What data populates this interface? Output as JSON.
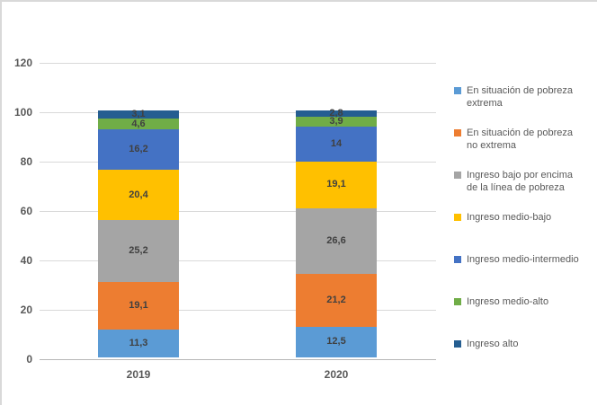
{
  "figure": {
    "background_color": "#FFFFFF",
    "border_color": "#D9D9D9"
  },
  "chart_data": {
    "type": "bar",
    "stacked": true,
    "title": "",
    "xlabel": "",
    "ylabel": "",
    "categories": [
      "2019",
      "2020"
    ],
    "series": [
      {
        "name": "En situación de pobreza extrema",
        "legend_label": "En situación de pobreza\nextrema",
        "color": "#5B9BD5",
        "values": [
          11.3,
          12.5
        ],
        "data_labels": [
          "11,3",
          "12,5"
        ]
      },
      {
        "name": "En situación de pobreza no extrema",
        "legend_label": "En situación de pobreza\nno extrema",
        "color": "#ED7D31",
        "values": [
          19.1,
          21.2
        ],
        "data_labels": [
          "19,1",
          "21,2"
        ]
      },
      {
        "name": "Ingreso bajo por encima de la línea de pobreza",
        "legend_label": "Ingreso bajo por encima\nde la línea de pobreza",
        "color": "#A5A5A5",
        "values": [
          25.2,
          26.6
        ],
        "data_labels": [
          "25,2",
          "26,6"
        ]
      },
      {
        "name": "Ingreso medio-bajo",
        "legend_label": "Ingreso medio-bajo",
        "color": "#FFC000",
        "values": [
          20.4,
          19.1
        ],
        "data_labels": [
          "20,4",
          "19,1"
        ]
      },
      {
        "name": "Ingreso medio-intermedio",
        "legend_label": "Ingreso medio-intermedio",
        "color": "#4472C4",
        "values": [
          16.2,
          14
        ],
        "data_labels": [
          "16,2",
          "14"
        ]
      },
      {
        "name": "Ingreso medio-alto",
        "legend_label": "Ingreso medio-alto",
        "color": "#70AD47",
        "values": [
          4.6,
          3.9
        ],
        "data_labels": [
          "4,6",
          "3,9"
        ]
      },
      {
        "name": "Ingreso alto",
        "legend_label": "Ingreso alto",
        "color": "#255E91",
        "values": [
          3.1,
          2.8
        ],
        "data_labels": [
          "3,1",
          "2,8"
        ]
      }
    ],
    "y_ticks": [
      0,
      20,
      40,
      60,
      80,
      100,
      120
    ],
    "y_tick_labels": [
      "0",
      "20",
      "40",
      "60",
      "80",
      "100",
      "120"
    ],
    "ylim": [
      0,
      120
    ],
    "grid": true,
    "legend_position": "right",
    "axis_text_color": "#595959",
    "data_label_color": "#404040",
    "gridline_color": "#D9D9D9"
  }
}
